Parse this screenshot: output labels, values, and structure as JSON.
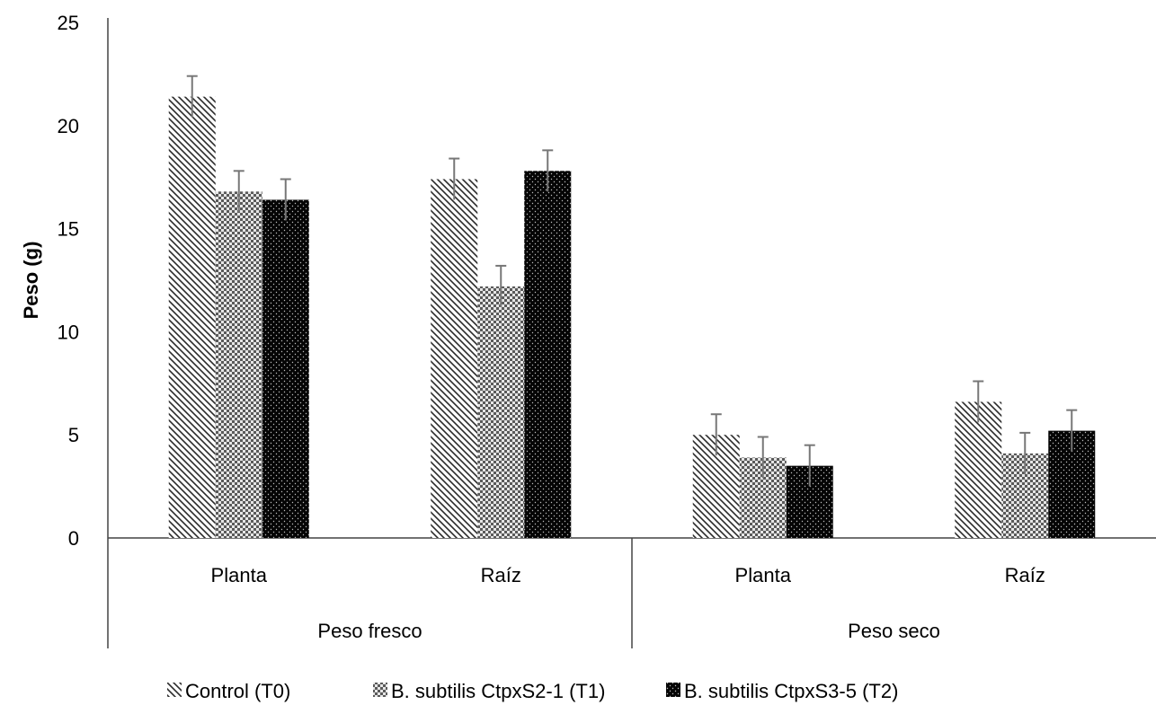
{
  "chart_data": {
    "type": "bar",
    "title": "",
    "ylabel": "Peso (g)",
    "xlabel": "",
    "ylim": [
      0,
      25
    ],
    "yticks": [
      0,
      5,
      10,
      15,
      20,
      25
    ],
    "grid": false,
    "legend_position": "bottom",
    "groups": [
      {
        "label": "Peso fresco",
        "categories": [
          "Planta",
          "Raíz"
        ]
      },
      {
        "label": "Peso seco",
        "categories": [
          "Planta",
          "Raíz"
        ]
      }
    ],
    "categories": [
      "Planta",
      "Raíz",
      "Planta",
      "Raíz"
    ],
    "series": [
      {
        "name": "Control (T0)",
        "pattern": "diagonal-hatch",
        "color": "#333333",
        "values": [
          21.4,
          17.4,
          5.0,
          6.6
        ],
        "errors": [
          1.0,
          1.0,
          1.0,
          1.0
        ]
      },
      {
        "name": "B. subtilis CtpxS2-1 (T1)",
        "pattern": "checker",
        "color": "#555555",
        "values": [
          16.8,
          12.2,
          3.9,
          4.1
        ],
        "errors": [
          1.0,
          1.0,
          1.0,
          1.0
        ]
      },
      {
        "name": "B. subtilis CtpxS3-5 (T2)",
        "pattern": "dotted-black",
        "color": "#000000",
        "values": [
          16.4,
          17.8,
          3.5,
          5.2
        ],
        "errors": [
          1.0,
          1.0,
          1.0,
          1.0
        ]
      }
    ]
  }
}
